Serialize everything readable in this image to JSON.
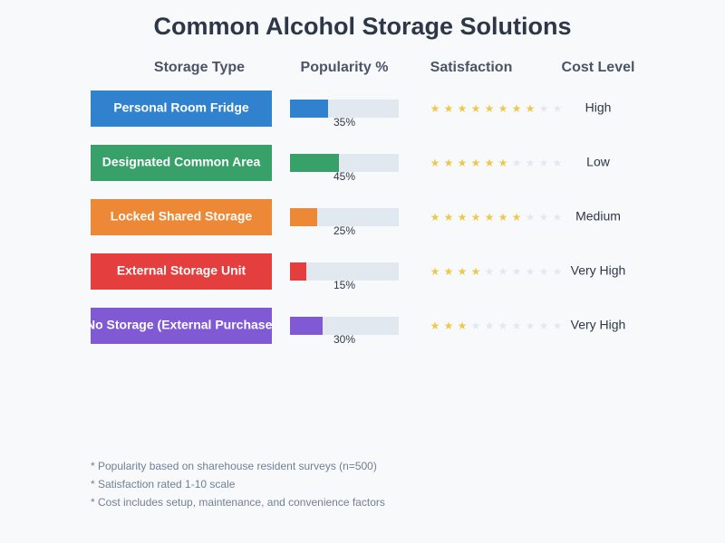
{
  "title": "Common Alcohol Storage Solutions",
  "headers": [
    "Storage Type",
    "Popularity %",
    "Satisfaction",
    "Cost Level"
  ],
  "rows": [
    {
      "storage_type": "Personal Room Fridge",
      "color": "#3182ce",
      "popularity": 35,
      "popularity_label": "35%",
      "satisfaction": 8,
      "cost_level": "High"
    },
    {
      "storage_type": "Designated Common Area",
      "color": "#38a169",
      "popularity": 45,
      "popularity_label": "45%",
      "satisfaction": 6,
      "cost_level": "Low"
    },
    {
      "storage_type": "Locked Shared Storage",
      "color": "#ed8936",
      "popularity": 25,
      "popularity_label": "25%",
      "satisfaction": 7,
      "cost_level": "Medium"
    },
    {
      "storage_type": "External Storage Unit",
      "color": "#e53e3e",
      "popularity": 15,
      "popularity_label": "15%",
      "satisfaction": 4,
      "cost_level": "Very High"
    },
    {
      "storage_type": "No Storage (External Purchase)",
      "color": "#805ad5",
      "popularity": 30,
      "popularity_label": "30%",
      "satisfaction": 3,
      "cost_level": "Very High"
    }
  ],
  "footnotes": [
    "* Popularity based on sharehouse resident surveys (n=500)",
    "* Satisfaction rated 1-10 scale",
    "* Cost includes setup, maintenance, and convenience factors"
  ]
}
